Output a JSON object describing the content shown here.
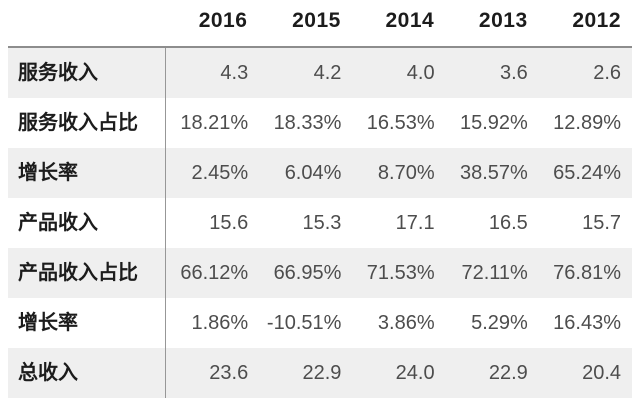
{
  "table": {
    "year_headers": [
      "2016",
      "2015",
      "2014",
      "2013",
      "2012"
    ],
    "rows": [
      {
        "label": "服务收入",
        "values": [
          "4.3",
          "4.2",
          "4.0",
          "3.6",
          "2.6"
        ]
      },
      {
        "label": "服务收入占比",
        "values": [
          "18.21%",
          "18.33%",
          "16.53%",
          "15.92%",
          "12.89%"
        ]
      },
      {
        "label": "增长率",
        "values": [
          "2.45%",
          "6.04%",
          "8.70%",
          "38.57%",
          "65.24%"
        ]
      },
      {
        "label": "产品收入",
        "values": [
          "15.6",
          "15.3",
          "17.1",
          "16.5",
          "15.7"
        ]
      },
      {
        "label": "产品收入占比",
        "values": [
          "66.12%",
          "66.95%",
          "71.53%",
          "72.11%",
          "76.81%"
        ]
      },
      {
        "label": "增长率",
        "values": [
          "1.86%",
          "-10.51%",
          "3.86%",
          "5.29%",
          "16.43%"
        ]
      },
      {
        "label": "总收入",
        "values": [
          "23.6",
          "22.9",
          "24.0",
          "22.9",
          "20.4"
        ]
      }
    ],
    "colors": {
      "stripe": "#efefef",
      "header_rule": "#8d8d8d",
      "column_divider": "#979797",
      "label_text": "#1c1c1c",
      "value_text": "#4d4d4d"
    }
  },
  "chart_data": {
    "type": "table",
    "title": "",
    "columns": [
      "",
      "2016",
      "2015",
      "2014",
      "2013",
      "2012"
    ],
    "rows": [
      [
        "服务收入",
        "4.3",
        "4.2",
        "4.0",
        "3.6",
        "2.6"
      ],
      [
        "服务收入占比",
        "18.21%",
        "18.33%",
        "16.53%",
        "15.92%",
        "12.89%"
      ],
      [
        "增长率",
        "2.45%",
        "6.04%",
        "8.70%",
        "38.57%",
        "65.24%"
      ],
      [
        "产品收入",
        "15.6",
        "15.3",
        "17.1",
        "16.5",
        "15.7"
      ],
      [
        "产品收入占比",
        "66.12%",
        "66.95%",
        "71.53%",
        "72.11%",
        "76.81%"
      ],
      [
        "增长率",
        "1.86%",
        "-10.51%",
        "3.86%",
        "5.29%",
        "16.43%"
      ],
      [
        "总收入",
        "23.6",
        "22.9",
        "24.0",
        "22.9",
        "20.4"
      ]
    ],
    "layout": {
      "striped_rows": "odd rows shaded #efefef starting with first data row",
      "label_column_divider": true,
      "header_rule": true
    }
  }
}
